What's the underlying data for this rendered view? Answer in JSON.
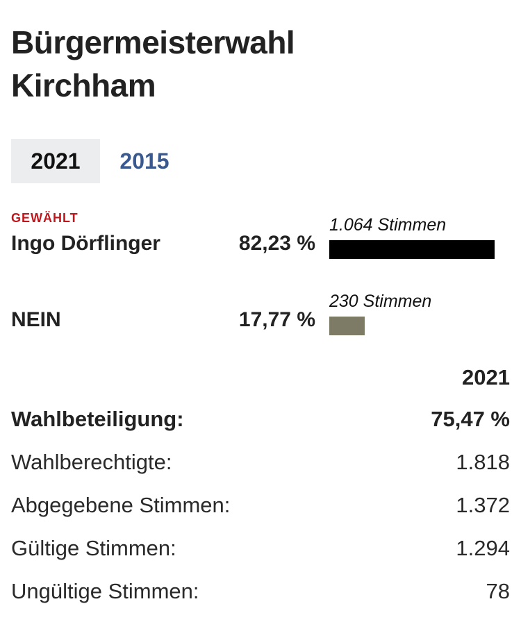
{
  "title_line1": "Bürgermeisterwahl",
  "title_line2": "Kirchham",
  "tabs": [
    {
      "label": "2021",
      "active": true
    },
    {
      "label": "2015",
      "active": false
    }
  ],
  "chart_data": {
    "type": "bar",
    "categories": [
      "Ingo Dörflinger",
      "NEIN"
    ],
    "values": [
      1064,
      230
    ],
    "percent_labels": [
      "82,23 %",
      "17,77 %"
    ],
    "vote_labels": [
      "1.064 Stimmen",
      "230 Stimmen"
    ],
    "badge": "GEWÄHLT",
    "colors": [
      "#000000",
      "#7d7a66"
    ],
    "max_bar_value": 1064
  },
  "stats": {
    "year_header": "2021",
    "rows": [
      {
        "label": "Wahlbeteiligung:",
        "value": "75,47 %",
        "bold": true
      },
      {
        "label": "Wahlberechtigte:",
        "value": "1.818",
        "bold": false
      },
      {
        "label": "Abgegebene Stimmen:",
        "value": "1.372",
        "bold": false
      },
      {
        "label": "Gültige Stimmen:",
        "value": "1.294",
        "bold": false
      },
      {
        "label": "Ungültige Stimmen:",
        "value": "78",
        "bold": false
      }
    ]
  }
}
